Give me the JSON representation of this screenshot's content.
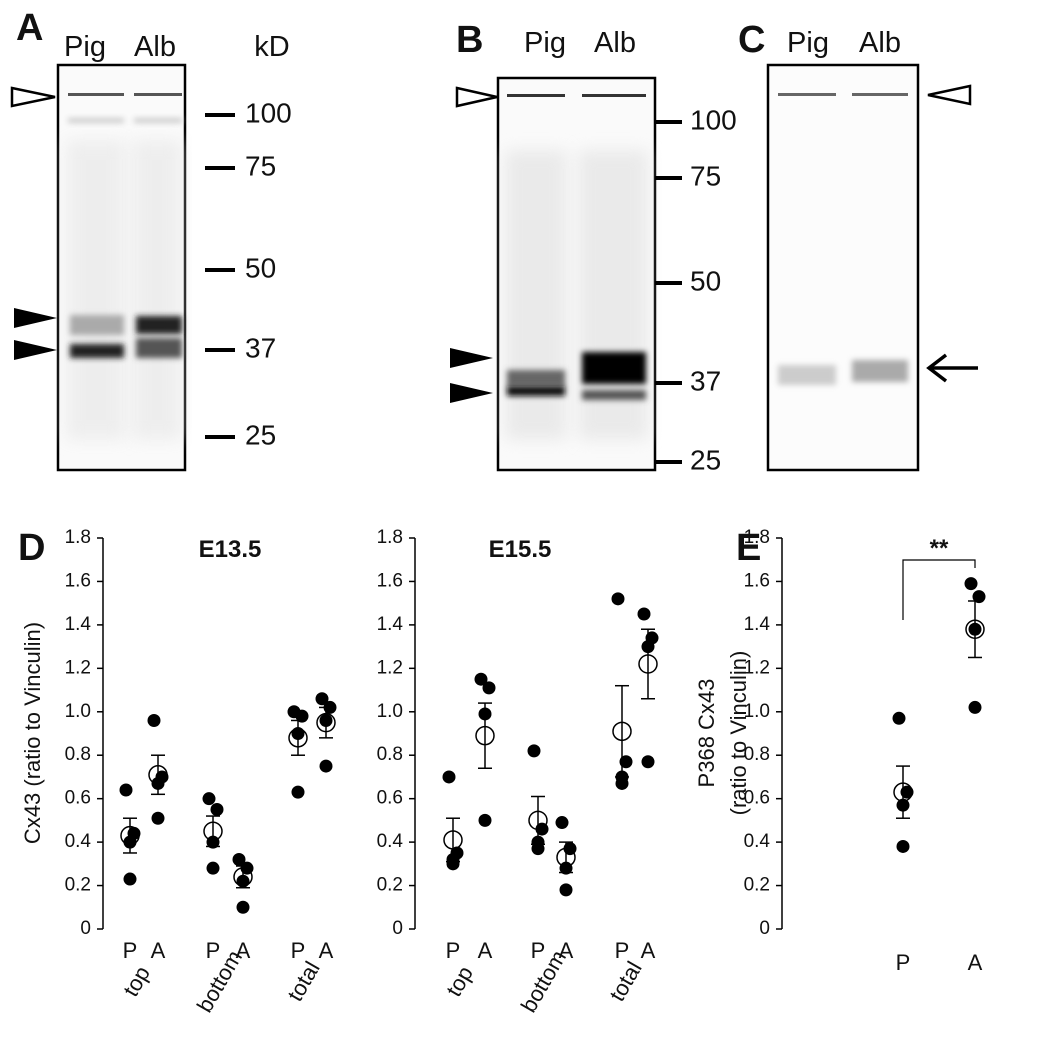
{
  "blots": [
    {
      "panel": "A",
      "lanes": [
        "Pig",
        "Alb"
      ],
      "unit": "kD",
      "markers": [
        100,
        75,
        50,
        37,
        25
      ]
    },
    {
      "panel": "B",
      "lanes": [
        "Pig",
        "Alb"
      ],
      "markers": [
        100,
        75,
        50,
        37,
        25
      ]
    },
    {
      "panel": "C",
      "lanes": [
        "Pig",
        "Alb"
      ]
    }
  ],
  "chart_data": [
    {
      "type": "dot",
      "panel": "D",
      "title": "E13.5",
      "ylabel": "Cx43 (ratio to Vinculin)",
      "categories": [
        "P",
        "A",
        "P",
        "A",
        "P",
        "A"
      ],
      "groups": [
        "top",
        "bottom",
        "total"
      ],
      "points": [
        [
          0.64,
          0.44,
          0.4,
          0.23
        ],
        [
          0.96,
          0.7,
          0.67,
          0.51
        ],
        [
          0.6,
          0.55,
          0.4,
          0.28
        ],
        [
          0.32,
          0.28,
          0.22,
          0.1
        ],
        [
          1.0,
          0.98,
          0.9,
          0.63
        ],
        [
          1.06,
          1.02,
          0.96,
          0.75
        ]
      ],
      "means": [
        0.43,
        0.71,
        0.45,
        0.24,
        0.88,
        0.95
      ],
      "errors": [
        0.08,
        0.09,
        0.07,
        0.05,
        0.08,
        0.07
      ],
      "ylim": [
        0,
        1.8
      ],
      "yticks": [
        0,
        0.2,
        0.4,
        0.6,
        0.8,
        {
          "value": 1,
          "label": "1.0"
        },
        1.2,
        1.4,
        1.6,
        1.8
      ]
    },
    {
      "type": "dot",
      "title": "E15.5",
      "categories": [
        "P",
        "A",
        "P",
        "A",
        "P",
        "A"
      ],
      "groups": [
        "top",
        "bottom",
        "total"
      ],
      "points": [
        [
          0.7,
          0.35,
          0.32,
          0.3
        ],
        [
          1.15,
          1.11,
          0.99,
          0.5
        ],
        [
          0.82,
          0.46,
          0.4,
          0.37
        ],
        [
          0.49,
          0.37,
          0.28,
          0.18
        ],
        [
          1.52,
          0.77,
          0.7,
          0.67
        ],
        [
          1.45,
          1.34,
          1.3,
          0.77
        ]
      ],
      "means": [
        0.41,
        0.89,
        0.5,
        0.33,
        0.91,
        1.22
      ],
      "errors": [
        0.1,
        0.15,
        0.11,
        0.07,
        0.21,
        0.16
      ],
      "ylim": [
        0,
        1.8
      ],
      "yticks": [
        0,
        0.2,
        0.4,
        0.6,
        0.8,
        {
          "value": 1,
          "label": "1.0"
        },
        1.2,
        1.4,
        1.6,
        1.8
      ]
    },
    {
      "type": "dot",
      "panel": "E",
      "ylabel": [
        "P368 Cx43",
        "(ratio to Vinculin)"
      ],
      "categories": [
        "P",
        "A"
      ],
      "points": [
        [
          0.97,
          0.63,
          0.57,
          0.38
        ],
        [
          1.59,
          1.53,
          1.38,
          1.02
        ]
      ],
      "means": [
        0.63,
        1.38
      ],
      "errors": [
        0.12,
        0.13
      ],
      "significance": "**",
      "ylim": [
        0,
        1.8
      ],
      "yticks": [
        0,
        0.2,
        0.4,
        0.6,
        0.8,
        {
          "value": 1,
          "label": "1.0"
        },
        1.2,
        1.4,
        1.6,
        1.8
      ]
    }
  ]
}
